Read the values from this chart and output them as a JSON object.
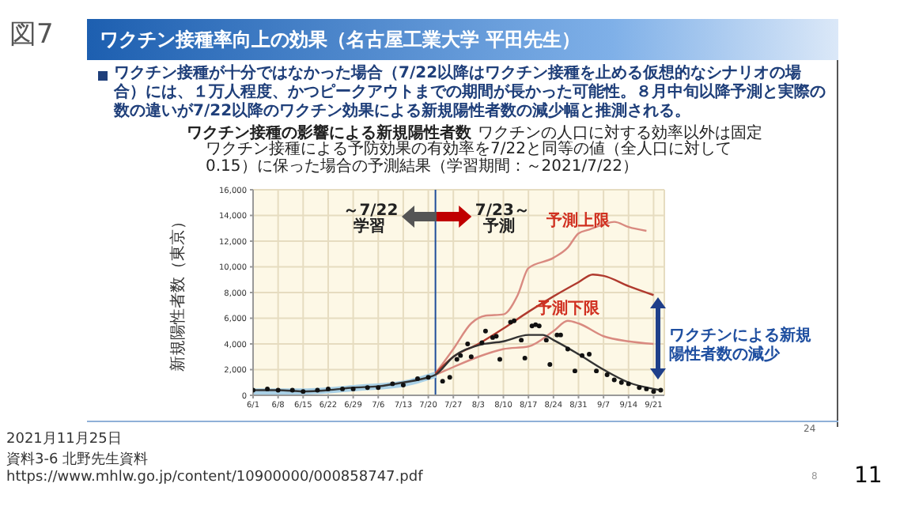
{
  "chart_data": {
    "type": "line",
    "title": "ワクチン接種の影響による新規陽性者数",
    "subtitle": "ワクチンの人口に対する効率以外は固定",
    "ylabel": "新規陽性者数（東京）",
    "annotations": [
      "図7",
      "ワクチン接種率向上の効果（名古屋工業大学 平田先生）",
      "ワクチン接種が十分ではなかった場合（7/22以降はワクチン接種を止める仮想的なシナリオの場合）には、１万人程度、かつピークアウトまでの期間が長かった可能性。８月中旬以降予測と実際の数の違いが7/22以降のワクチン効果による新規陽性者数の減少幅と推測される。",
      "ワクチン接種による予防効果の有効率を7/22と同等の値（全人口に対して0.15）に保った場合の予測結果（学習期間：～2021/7/22）",
      "～7/22",
      "学習",
      "7/23～",
      "予測",
      "ワクチンによる新規陽性者数の減少",
      "24",
      "2021月11月25日",
      "資料3-6 北野先生資料",
      "https://www.mhlw.go.jp/content/10900000/000858747.pdf",
      "8",
      "11"
    ],
    "xlim": [
      "--06-01",
      "--09-24"
    ],
    "xticks": [
      {
        "value": "--06-01",
        "label": "6/1"
      },
      {
        "value": "--06-08",
        "label": "6/8"
      },
      {
        "value": "--06-15",
        "label": "6/15"
      },
      {
        "value": "--06-22",
        "label": "6/22"
      },
      {
        "value": "--06-29",
        "label": "6/29"
      },
      {
        "value": "--07-06",
        "label": "7/6"
      },
      {
        "value": "--07-13",
        "label": "7/13"
      },
      {
        "value": "--07-20",
        "label": "7/20"
      },
      {
        "value": "--07-27",
        "label": "7/27"
      },
      {
        "value": "--08-03",
        "label": "8/3"
      },
      {
        "value": "--08-10",
        "label": "8/10"
      },
      {
        "value": "--08-17",
        "label": "8/17"
      },
      {
        "value": "--08-24",
        "label": "8/24"
      },
      {
        "value": "--08-31",
        "label": "8/31"
      },
      {
        "value": "--09-07",
        "label": "9/7"
      },
      {
        "value": "--09-14",
        "label": "9/14"
      },
      {
        "value": "--09-21",
        "label": "9/21"
      }
    ],
    "ylim": [
      0,
      16000
    ],
    "yticks": [
      0,
      {
        "value": 2000,
        "label": "2,000"
      },
      {
        "value": 4000,
        "label": "4,000"
      },
      {
        "value": 6000,
        "label": "6,000"
      },
      {
        "value": 8000,
        "label": "8,000"
      },
      {
        "value": 10000,
        "label": "10,000"
      },
      {
        "value": 12000,
        "label": "12,000"
      },
      {
        "value": 14000,
        "label": "14,000"
      },
      {
        "value": 16000,
        "label": "16,000"
      }
    ],
    "grid": true,
    "ref_lines": [
      {
        "axis": "x",
        "value": "--07-22",
        "color": "#1f4e9a"
      }
    ],
    "series": [
      {
        "color": "#a9d0e6",
        "x": [
          "--06-01",
          "--06-15",
          "--07-01",
          "--07-13",
          "--07-22"
        ],
        "values": [
          300,
          300,
          600,
          900,
          1600
        ]
      },
      {
        "name": "予測上限",
        "color": "#d98a80",
        "x": [
          "--07-22",
          "--07-27",
          "--08-01",
          "--08-05",
          "--08-10",
          "--08-14",
          "--08-17",
          "--08-24",
          "--08-28",
          "--08-31",
          "--09-03",
          "--09-07",
          "--09-10",
          "--09-14",
          "--09-19"
        ],
        "values": [
          1700,
          3600,
          5600,
          6200,
          6300,
          7800,
          9900,
          10700,
          11500,
          12600,
          12900,
          13300,
          13500,
          13100,
          12800
        ]
      },
      {
        "color": "#b03a2e",
        "x": [
          "--07-22",
          "--07-27",
          "--08-03",
          "--08-10",
          "--08-17",
          "--08-24",
          "--08-31",
          "--09-04",
          "--09-07",
          "--09-14",
          "--09-21"
        ],
        "values": [
          1700,
          3000,
          4000,
          5200,
          6500,
          7700,
          8800,
          9400,
          9300,
          8500,
          7800
        ]
      },
      {
        "name": "予測下限",
        "color": "#d98a80",
        "x": [
          "--07-22",
          "--07-27",
          "--08-03",
          "--08-10",
          "--08-17",
          "--08-24",
          "--08-28",
          "--08-31",
          "--09-07",
          "--09-14",
          "--09-21"
        ],
        "values": [
          1600,
          2200,
          3000,
          3600,
          3800,
          5000,
          5800,
          5600,
          4600,
          4200,
          4000
        ]
      },
      {
        "color": "#333333",
        "x": [
          "--06-01",
          "--06-08",
          "--06-15",
          "--06-22",
          "--06-29",
          "--07-06",
          "--07-13",
          "--07-20",
          "--07-22",
          "--07-27",
          "--08-03",
          "--08-10",
          "--08-17",
          "--08-21",
          "--08-24",
          "--08-31",
          "--09-07",
          "--09-14",
          "--09-21",
          "--09-23"
        ],
        "values": [
          400,
          400,
          300,
          400,
          600,
          700,
          1000,
          1400,
          1600,
          3000,
          3900,
          4200,
          4700,
          4700,
          4300,
          3200,
          2000,
          1000,
          500,
          400
        ]
      },
      {
        "type": "scatter",
        "color": "#111111",
        "x": [
          "--06-01",
          "--06-05",
          "--06-08",
          "--06-12",
          "--06-15",
          "--06-19",
          "--06-22",
          "--06-26",
          "--06-29",
          "--07-03",
          "--07-06",
          "--07-10",
          "--07-13",
          "--07-17",
          "--07-20",
          "--07-24",
          "--07-26",
          "--07-28",
          "--07-29",
          "--07-31",
          "--08-01",
          "--08-04",
          "--08-05",
          "--08-07",
          "--08-08",
          "--08-09",
          "--08-12",
          "--08-13",
          "--08-15",
          "--08-16",
          "--08-18",
          "--08-19",
          "--08-20",
          "--08-22",
          "--08-23",
          "--08-25",
          "--08-26",
          "--08-28",
          "--08-30",
          "--09-01",
          "--09-03",
          "--09-05",
          "--09-08",
          "--09-10",
          "--09-12",
          "--09-14",
          "--09-17",
          "--09-19",
          "--09-21",
          "--09-23"
        ],
        "values": [
          400,
          500,
          400,
          400,
          300,
          400,
          500,
          500,
          500,
          600,
          600,
          900,
          800,
          1300,
          1400,
          1100,
          1400,
          2800,
          3100,
          4000,
          3000,
          4100,
          5000,
          4500,
          4600,
          2800,
          5700,
          5800,
          4300,
          2900,
          5400,
          5500,
          5400,
          4300,
          2400,
          4700,
          4700,
          3600,
          1900,
          3100,
          3200,
          1900,
          1600,
          1200,
          1000,
          900,
          600,
          500,
          300,
          400
        ]
      }
    ]
  }
}
